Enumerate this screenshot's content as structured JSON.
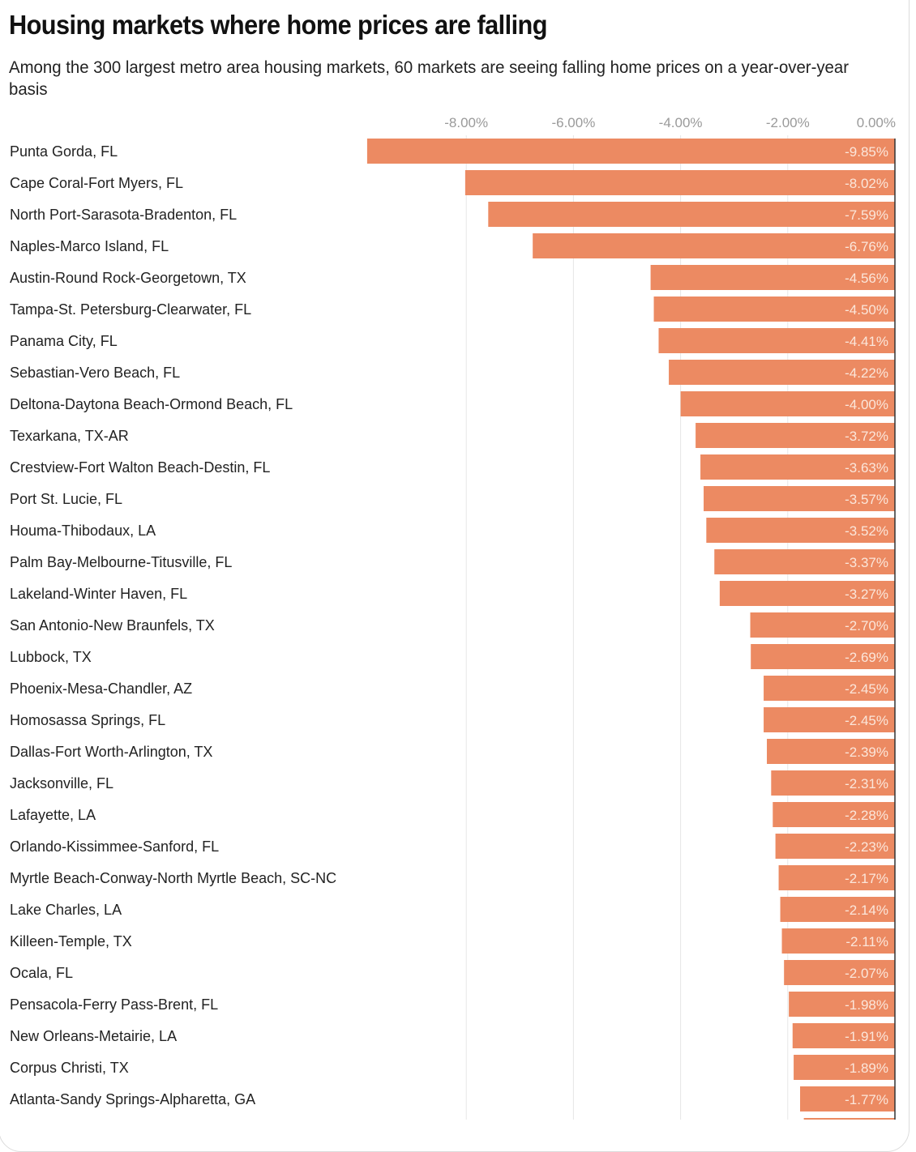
{
  "chart_data": {
    "type": "bar",
    "orientation": "horizontal",
    "title": "Housing markets where home prices are falling",
    "subtitle": "Among the 300 largest metro area housing markets, 60 markets are seeing falling home prices on a year-over-year basis",
    "xlabel": "",
    "ylabel": "",
    "xlim": [
      -10,
      0
    ],
    "x_ticks": [
      -8,
      -6,
      -4,
      -2,
      0
    ],
    "x_tick_labels": [
      "-8.00%",
      "-6.00%",
      "-4.00%",
      "-2.00%",
      "0.00%"
    ],
    "x_axis_position": "top",
    "grid": true,
    "bar_color": "#ec8a62",
    "categories": [
      "Punta Gorda, FL",
      "Cape Coral-Fort Myers, FL",
      "North Port-Sarasota-Bradenton, FL",
      "Naples-Marco Island, FL",
      "Austin-Round Rock-Georgetown, TX",
      "Tampa-St. Petersburg-Clearwater, FL",
      "Panama City, FL",
      "Sebastian-Vero Beach, FL",
      "Deltona-Daytona Beach-Ormond Beach, FL",
      "Texarkana, TX-AR",
      "Crestview-Fort Walton Beach-Destin, FL",
      "Port St. Lucie, FL",
      "Houma-Thibodaux, LA",
      "Palm Bay-Melbourne-Titusville, FL",
      "Lakeland-Winter Haven, FL",
      "San Antonio-New Braunfels, TX",
      "Lubbock, TX",
      "Phoenix-Mesa-Chandler, AZ",
      "Homosassa Springs, FL",
      "Dallas-Fort Worth-Arlington, TX",
      "Jacksonville, FL",
      "Lafayette, LA",
      "Orlando-Kissimmee-Sanford, FL",
      "Myrtle Beach-Conway-North Myrtle Beach, SC-NC",
      "Lake Charles, LA",
      "Killeen-Temple, TX",
      "Ocala, FL",
      "Pensacola-Ferry Pass-Brent, FL",
      "New Orleans-Metairie, LA",
      "Corpus Christi, TX",
      "Atlanta-Sandy Springs-Alpharetta, GA"
    ],
    "values": [
      -9.85,
      -8.02,
      -7.59,
      -6.76,
      -4.56,
      -4.5,
      -4.41,
      -4.22,
      -4.0,
      -3.72,
      -3.63,
      -3.57,
      -3.52,
      -3.37,
      -3.27,
      -2.7,
      -2.69,
      -2.45,
      -2.45,
      -2.39,
      -2.31,
      -2.28,
      -2.23,
      -2.17,
      -2.14,
      -2.11,
      -2.07,
      -1.98,
      -1.91,
      -1.89,
      -1.77
    ],
    "value_labels": [
      "-9.85%",
      "-8.02%",
      "-7.59%",
      "-6.76%",
      "-4.56%",
      "-4.50%",
      "-4.41%",
      "-4.22%",
      "-4.00%",
      "-3.72%",
      "-3.63%",
      "-3.57%",
      "-3.52%",
      "-3.37%",
      "-3.27%",
      "-2.70%",
      "-2.69%",
      "-2.45%",
      "-2.45%",
      "-2.39%",
      "-2.31%",
      "-2.28%",
      "-2.23%",
      "-2.17%",
      "-2.14%",
      "-2.11%",
      "-2.07%",
      "-1.98%",
      "-1.91%",
      "-1.89%",
      "-1.77%"
    ],
    "partial_next_bar_visible": true
  }
}
